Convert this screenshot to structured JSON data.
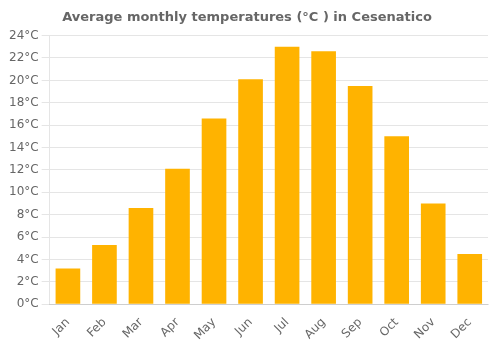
{
  "chart_data": {
    "type": "bar",
    "title": "Average monthly temperatures (°C ) in Cesenatico",
    "categories": [
      "Jan",
      "Feb",
      "Mar",
      "Apr",
      "May",
      "Jun",
      "Jul",
      "Aug",
      "Sep",
      "Oct",
      "Nov",
      "Dec"
    ],
    "values": [
      3.2,
      5.3,
      8.6,
      12.1,
      16.6,
      20.1,
      23.0,
      22.6,
      19.5,
      15.0,
      9.0,
      4.5
    ],
    "color": "#FFB300",
    "ylim": [
      0,
      24
    ],
    "yticks": [
      {
        "value": 0,
        "label": "0°C"
      },
      {
        "value": 2,
        "label": "2°C"
      },
      {
        "value": 4,
        "label": "4°C"
      },
      {
        "value": 6,
        "label": "6°C"
      },
      {
        "value": 8,
        "label": "8°C"
      },
      {
        "value": 10,
        "label": "10°C"
      },
      {
        "value": 12,
        "label": "12°C"
      },
      {
        "value": 14,
        "label": "14°C"
      },
      {
        "value": 16,
        "label": "16°C"
      },
      {
        "value": 18,
        "label": "18°C"
      },
      {
        "value": 20,
        "label": "20°C"
      },
      {
        "value": 22,
        "label": "22°C"
      },
      {
        "value": 24,
        "label": "24°C"
      }
    ],
    "grid": true
  }
}
